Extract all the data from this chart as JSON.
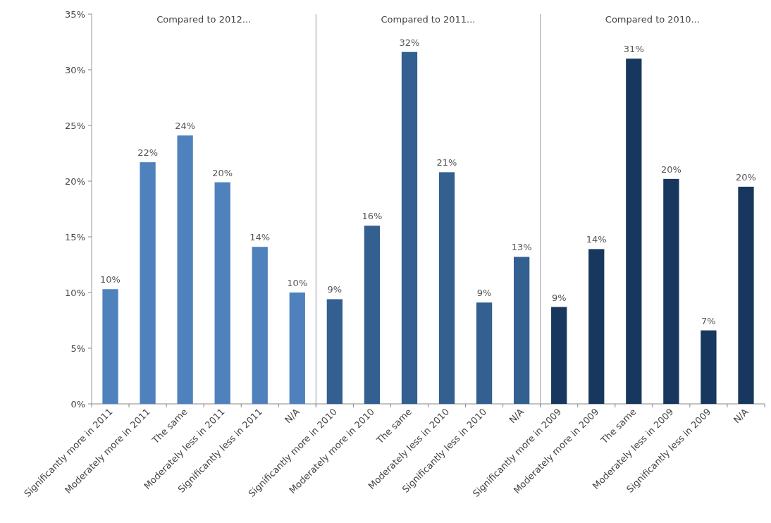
{
  "chart_data": [
    {
      "type": "bar",
      "title": "Compared to 2012...",
      "categories": [
        "Significantly more in 2011",
        "Moderately more in 2011",
        "The same",
        "Moderately less in 2011",
        "Significantly less in 2011",
        "N/A"
      ],
      "values": [
        10.3,
        21.7,
        24.1,
        19.9,
        14.1,
        10.0
      ],
      "value_labels": [
        "10%",
        "22%",
        "24%",
        "20%",
        "14%",
        "10%"
      ],
      "color": "#4f81bd",
      "ylim": [
        0,
        35
      ],
      "yticks": [
        {
          "value": 0,
          "label": "0%"
        },
        {
          "value": 5,
          "label": "5%"
        },
        {
          "value": 10,
          "label": "10%"
        },
        {
          "value": 15,
          "label": "15%"
        },
        {
          "value": 20,
          "label": "20%"
        },
        {
          "value": 25,
          "label": "25%"
        },
        {
          "value": 30,
          "label": "30%"
        },
        {
          "value": 35,
          "label": "35%"
        }
      ]
    },
    {
      "type": "bar",
      "title": "Compared to 2011...",
      "categories": [
        "Significantly more in 2010",
        "Moderately more in 2010",
        "The same",
        "Moderately less in 2010",
        "Significantly less in 2010",
        "N/A"
      ],
      "values": [
        9.4,
        16.0,
        31.6,
        20.8,
        9.1,
        13.2
      ],
      "value_labels": [
        "9%",
        "16%",
        "32%",
        "21%",
        "9%",
        "13%"
      ],
      "color": "#335f91",
      "ylim": [
        0,
        35
      ],
      "tick_labels": "x"
    },
    {
      "type": "bar",
      "title": "Compared to 2010...",
      "categories": [
        "Significantly more in 2009",
        "Moderately more in 2009",
        "The same",
        "Moderately less in 2009",
        "Significantly less in 2009",
        "N/A"
      ],
      "values": [
        8.7,
        13.9,
        31.0,
        20.2,
        6.6,
        19.5
      ],
      "value_labels": [
        "9%",
        "14%",
        "31%",
        "20%",
        "7%",
        "20%"
      ],
      "color": "#17375e",
      "ylim": [
        0,
        35
      ],
      "tick_labels": "x"
    }
  ]
}
